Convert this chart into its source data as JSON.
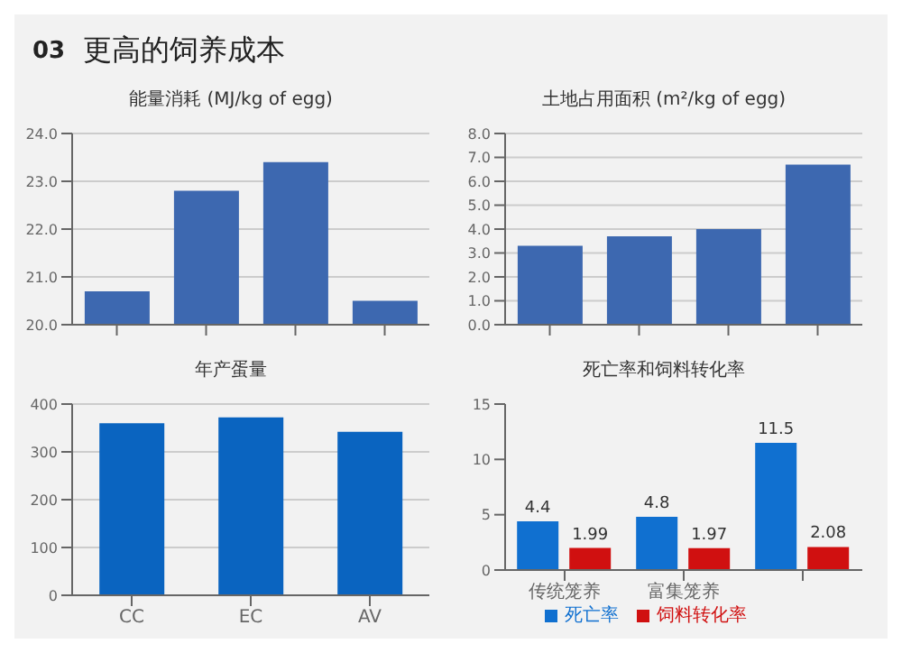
{
  "chart_data": [
    {
      "type": "bar",
      "title": "能量消耗 (MJ/kg of egg)",
      "annotations": [
        "03",
        "更高的饲养成本"
      ],
      "categories": [
        null,
        null,
        null,
        null
      ],
      "values": [
        20.7,
        22.8,
        23.4,
        20.5
      ],
      "color": "#3d68b0",
      "ylim": [
        20,
        24
      ],
      "yticks": [
        {
          "value": 20,
          "label": "20.0"
        },
        {
          "value": 21,
          "label": "21.0"
        },
        {
          "value": 22,
          "label": "22.0"
        },
        {
          "value": 23,
          "label": "23.0"
        },
        {
          "value": 24,
          "label": "24.0"
        }
      ],
      "grid": "y"
    },
    {
      "type": "bar",
      "title": "土地占用面积 (m²/kg of egg)",
      "categories": [
        null,
        null,
        null,
        null
      ],
      "values": [
        3.3,
        3.7,
        4.0,
        6.7
      ],
      "color": "#3d68b0",
      "ylim": [
        0,
        8
      ],
      "yticks": [
        {
          "value": 0,
          "label": "0.0"
        },
        {
          "value": 1,
          "label": "1.0"
        },
        {
          "value": 2,
          "label": "2.0"
        },
        {
          "value": 3,
          "label": "3.0"
        },
        {
          "value": 4,
          "label": "4.0"
        },
        {
          "value": 5,
          "label": "5.0"
        },
        {
          "value": 6,
          "label": "6.0"
        },
        {
          "value": 7,
          "label": "7.0"
        },
        {
          "value": 8,
          "label": "8.0"
        }
      ],
      "grid": "y"
    },
    {
      "type": "bar",
      "title": "年产蛋量",
      "categories": [
        "CC",
        "EC",
        "AV"
      ],
      "values": [
        360,
        372,
        342
      ],
      "color": "#0a64c0",
      "ylim": [
        0,
        400
      ],
      "yticks": [
        0,
        100,
        200,
        300,
        400
      ],
      "grid": "y"
    },
    {
      "type": "bar",
      "title": "死亡率和饲料转化率",
      "categories": [
        "传统笼养",
        "富集笼养",
        null
      ],
      "series": [
        {
          "name": "死亡率",
          "color": "#1070d0",
          "values": [
            4.4,
            4.8,
            11.5
          ]
        },
        {
          "name": "饲料转化率",
          "color": "#d01010",
          "values": [
            1.99,
            1.97,
            2.08
          ]
        }
      ],
      "ylim": [
        0,
        15
      ],
      "yticks": [
        0,
        5,
        10,
        15
      ],
      "data_labels": true,
      "legend": "bottom"
    }
  ]
}
